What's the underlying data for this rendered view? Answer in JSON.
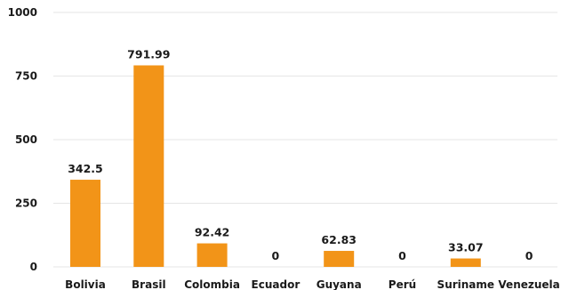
{
  "chart_data": {
    "type": "bar",
    "categories": [
      "Bolivia",
      "Brasil",
      "Colombia",
      "Ecuador",
      "Guyana",
      "Perú",
      "Suriname",
      "Venezuela"
    ],
    "values": [
      342.5,
      791.99,
      92.42,
      0,
      62.83,
      0,
      33.07,
      0
    ],
    "data_labels": [
      "342.5",
      "791.99",
      "92.42",
      "0",
      "62.83",
      "0",
      "33.07",
      "0"
    ],
    "y_ticks": [
      "0",
      "250",
      "500",
      "750",
      "1000"
    ],
    "y_tick_values": [
      0,
      250,
      500,
      750,
      1000
    ],
    "ylim": [
      0,
      1000
    ],
    "grid": true,
    "bar_color": "#f29418",
    "title": "",
    "xlabel": "",
    "ylabel": ""
  }
}
